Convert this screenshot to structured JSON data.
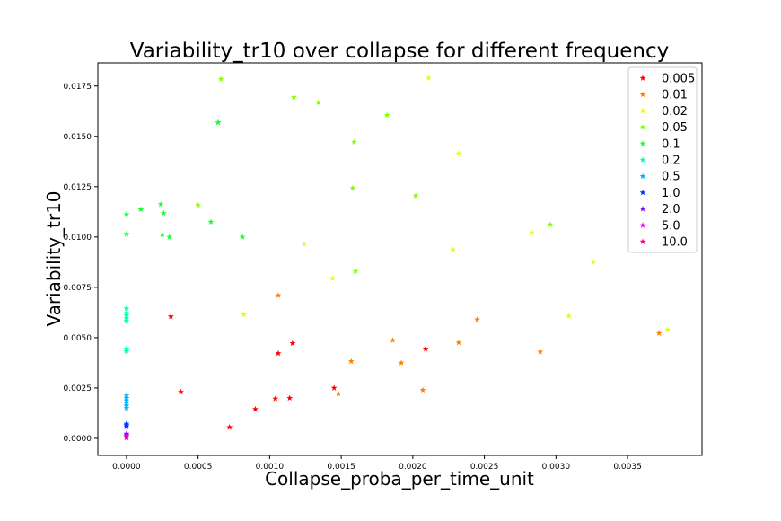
{
  "chart_data": {
    "type": "scatter",
    "title": "Variability_tr10 over collapse for different frequency",
    "xlabel": "Collapse_proba_per_time_unit",
    "ylabel": "Variability_tr10",
    "xlim": [
      -0.0002,
      0.00402
    ],
    "ylim": [
      -0.00085,
      0.01865
    ],
    "x_ticks": [
      0.0,
      0.0005,
      0.001,
      0.0015,
      0.002,
      0.0025,
      0.003,
      0.0035
    ],
    "x_tick_labels": [
      "0.0000",
      "0.0005",
      "0.0010",
      "0.0015",
      "0.0020",
      "0.0025",
      "0.0030",
      "0.0035"
    ],
    "y_ticks": [
      0.0,
      0.0025,
      0.005,
      0.0075,
      0.01,
      0.0125,
      0.015,
      0.0175
    ],
    "y_tick_labels": [
      "0.0000",
      "0.0025",
      "0.0050",
      "0.0075",
      "0.0100",
      "0.0125",
      "0.0150",
      "0.0175"
    ],
    "grid": false,
    "legend_position": "top-right",
    "marker": "star",
    "series": [
      {
        "name": "0.005",
        "color": "#ff0000",
        "points": [
          [
            0.00031,
            0.00605
          ],
          [
            0.00038,
            0.0023
          ],
          [
            0.00072,
            0.00055
          ],
          [
            0.0009,
            0.00145
          ],
          [
            0.00104,
            0.00197
          ],
          [
            0.00106,
            0.00422
          ],
          [
            0.00114,
            0.002
          ],
          [
            0.00116,
            0.00472
          ],
          [
            0.00145,
            0.0025
          ],
          [
            0.00209,
            0.00445
          ]
        ]
      },
      {
        "name": "0.01",
        "color": "#ff8000",
        "points": [
          [
            0.00106,
            0.0071
          ],
          [
            0.00148,
            0.00222
          ],
          [
            0.00157,
            0.00382
          ],
          [
            0.00186,
            0.00487
          ],
          [
            0.00192,
            0.00375
          ],
          [
            0.00207,
            0.0024
          ],
          [
            0.00232,
            0.00475
          ],
          [
            0.00245,
            0.0059
          ],
          [
            0.00289,
            0.0043
          ],
          [
            0.00372,
            0.00522
          ]
        ]
      },
      {
        "name": "0.02",
        "color": "#e6ff00",
        "points": [
          [
            0.00082,
            0.00615
          ],
          [
            0.00124,
            0.00965
          ],
          [
            0.00144,
            0.00795
          ],
          [
            0.00211,
            0.0179
          ],
          [
            0.00228,
            0.00937
          ],
          [
            0.00232,
            0.01415
          ],
          [
            0.00283,
            0.01022
          ],
          [
            0.00309,
            0.00607
          ],
          [
            0.00326,
            0.00875
          ],
          [
            0.00378,
            0.0054
          ]
        ]
      },
      {
        "name": "0.05",
        "color": "#80ff00",
        "points": [
          [
            0.0005,
            0.01158
          ],
          [
            0.00066,
            0.01785
          ],
          [
            0.00117,
            0.01695
          ],
          [
            0.00134,
            0.01668
          ],
          [
            0.00158,
            0.01243
          ],
          [
            0.00159,
            0.01472
          ],
          [
            0.0016,
            0.0083
          ],
          [
            0.00182,
            0.01605
          ],
          [
            0.00202,
            0.01205
          ],
          [
            0.00296,
            0.01062
          ]
        ]
      },
      {
        "name": "0.1",
        "color": "#19ff33",
        "points": [
          [
            0.0,
            0.01112
          ],
          [
            0.0,
            0.01015
          ],
          [
            0.0001,
            0.01137
          ],
          [
            0.00024,
            0.01162
          ],
          [
            0.00025,
            0.01012
          ],
          [
            0.00026,
            0.01118
          ],
          [
            0.0003,
            0.01
          ],
          [
            0.00059,
            0.01075
          ],
          [
            0.00064,
            0.01568
          ],
          [
            0.00081,
            0.01
          ],
          [
            0.00064,
            0.0157
          ]
        ]
      },
      {
        "name": "0.2",
        "color": "#00ffb3",
        "points": [
          [
            0.0,
            0.00645
          ],
          [
            0.0,
            0.00622
          ],
          [
            0.0,
            0.0061
          ],
          [
            0.0,
            0.00595
          ],
          [
            0.0,
            0.00582
          ],
          [
            0.0,
            0.00445
          ],
          [
            0.0,
            0.00432
          ]
        ]
      },
      {
        "name": "0.5",
        "color": "#00b3ff",
        "points": [
          [
            0.0,
            0.00212
          ],
          [
            0.0,
            0.002
          ],
          [
            0.0,
            0.00188
          ],
          [
            0.0,
            0.00175
          ],
          [
            0.0,
            0.00162
          ],
          [
            0.0,
            0.0015
          ]
        ]
      },
      {
        "name": "1.0",
        "color": "#0033ff",
        "points": [
          [
            0.0,
            0.00072
          ],
          [
            0.0,
            0.00065
          ],
          [
            0.0,
            0.00058
          ]
        ]
      },
      {
        "name": "2.0",
        "color": "#8000ff",
        "points": [
          [
            0.0,
            0.00022
          ],
          [
            0.0,
            0.00015
          ]
        ]
      },
      {
        "name": "5.0",
        "color": "#e600ff",
        "points": [
          [
            0.0,
            0.0001
          ],
          [
            0.0,
            5e-05
          ]
        ]
      },
      {
        "name": "10.0",
        "color": "#ff0080",
        "points": [
          [
            0.0,
            3e-05
          ]
        ]
      }
    ]
  }
}
